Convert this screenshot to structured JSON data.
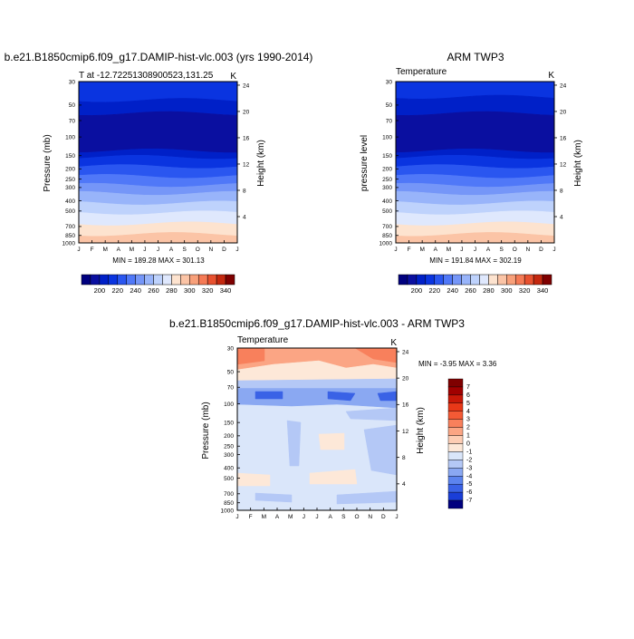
{
  "panel1": {
    "title": "b.e21.B1850cmip6.f09_g17.DAMIP-hist-vlc.003 (yrs 1990-2014)",
    "left_label": "T at -12.72251308900523,131.25",
    "unit": "K",
    "ylabel": "Pressure (mb)",
    "right_label": "Height (km)",
    "minmax": "MIN = 189.28 MAX = 301.13"
  },
  "panel2": {
    "title": "ARM TWP3",
    "left_label": "Temperature",
    "unit": "K",
    "ylabel": "pressure level",
    "right_label": "Height (km)",
    "minmax": "MIN = 191.84 MAX = 302.19"
  },
  "panel3": {
    "title": "b.e21.B1850cmip6.f09_g17.DAMIP-hist-vlc.003 - ARM TWP3",
    "left_label": "Temperature",
    "unit": "K",
    "ylabel": "Pressure (mb)",
    "right_label": "Height (km)",
    "minmax": "MIN =  -3.95 MAX =   3.36"
  },
  "chart_data": [
    {
      "type": "heatmap",
      "title": "b.e21.B1850cmip6.f09_g17.DAMIP-hist-vlc.003 (yrs 1990-2014)",
      "x_ticks": [
        "J",
        "F",
        "M",
        "A",
        "M",
        "J",
        "J",
        "A",
        "S",
        "O",
        "N",
        "D",
        "J"
      ],
      "pressure_ticks": [
        "30",
        "50",
        "70",
        "100",
        "150",
        "200",
        "250",
        "300",
        "400",
        "500",
        "700",
        "850",
        "1000"
      ],
      "height_ticks": [
        "24",
        "20",
        "16",
        "12",
        "8",
        "4"
      ],
      "bands": [
        {
          "p_top": 30,
          "p_bottom": 45,
          "value": 215
        },
        {
          "p_top": 45,
          "p_bottom": 60,
          "value": 205
        },
        {
          "p_top": 60,
          "p_bottom": 135,
          "value": 195
        },
        {
          "p_top": 135,
          "p_bottom": 155,
          "value": 205
        },
        {
          "p_top": 155,
          "p_bottom": 190,
          "value": 215
        },
        {
          "p_top": 190,
          "p_bottom": 235,
          "value": 225
        },
        {
          "p_top": 235,
          "p_bottom": 285,
          "value": 235
        },
        {
          "p_top": 285,
          "p_bottom": 340,
          "value": 245
        },
        {
          "p_top": 340,
          "p_bottom": 420,
          "value": 255
        },
        {
          "p_top": 420,
          "p_bottom": 520,
          "value": 265
        },
        {
          "p_top": 520,
          "p_bottom": 660,
          "value": 275
        },
        {
          "p_top": 660,
          "p_bottom": 830,
          "value": 285
        },
        {
          "p_top": 830,
          "p_bottom": 1000,
          "value": 295
        }
      ],
      "colorbar_labels": [
        "200",
        "220",
        "240",
        "260",
        "280",
        "300",
        "320",
        "340"
      ],
      "min": 189.28,
      "max": 301.13
    },
    {
      "type": "heatmap",
      "title": "ARM TWP3",
      "x_ticks": [
        "J",
        "F",
        "M",
        "A",
        "M",
        "J",
        "J",
        "A",
        "S",
        "O",
        "N",
        "D",
        "J"
      ],
      "pressure_ticks": [
        "30",
        "50",
        "70",
        "100",
        "150",
        "200",
        "250",
        "300",
        "400",
        "500",
        "700",
        "850",
        "1000"
      ],
      "height_ticks": [
        "24",
        "20",
        "16",
        "12",
        "8",
        "4"
      ],
      "bands": [
        {
          "p_top": 30,
          "p_bottom": 42,
          "value": 215
        },
        {
          "p_top": 42,
          "p_bottom": 60,
          "value": 205
        },
        {
          "p_top": 60,
          "p_bottom": 135,
          "value": 195
        },
        {
          "p_top": 135,
          "p_bottom": 155,
          "value": 205
        },
        {
          "p_top": 155,
          "p_bottom": 190,
          "value": 215
        },
        {
          "p_top": 190,
          "p_bottom": 235,
          "value": 225
        },
        {
          "p_top": 235,
          "p_bottom": 285,
          "value": 235
        },
        {
          "p_top": 285,
          "p_bottom": 340,
          "value": 245
        },
        {
          "p_top": 340,
          "p_bottom": 420,
          "value": 255
        },
        {
          "p_top": 420,
          "p_bottom": 520,
          "value": 265
        },
        {
          "p_top": 520,
          "p_bottom": 660,
          "value": 275
        },
        {
          "p_top": 660,
          "p_bottom": 830,
          "value": 285
        },
        {
          "p_top": 830,
          "p_bottom": 1000,
          "value": 295
        }
      ],
      "colorbar_labels": [
        "200",
        "220",
        "240",
        "260",
        "280",
        "300",
        "320",
        "340"
      ],
      "min": 191.84,
      "max": 302.19
    },
    {
      "type": "heatmap",
      "title": "b.e21.B1850cmip6.f09_g17.DAMIP-hist-vlc.003 - ARM TWP3",
      "x_ticks": [
        "J",
        "F",
        "M",
        "A",
        "M",
        "J",
        "J",
        "A",
        "S",
        "O",
        "N",
        "D",
        "J"
      ],
      "pressure_ticks": [
        "30",
        "50",
        "70",
        "100",
        "150",
        "200",
        "250",
        "300",
        "400",
        "500",
        "700",
        "850",
        "1000"
      ],
      "height_ticks": [
        "24",
        "20",
        "16",
        "12",
        "8",
        "4"
      ],
      "colorbar_labels": [
        "7",
        "6",
        "5",
        "4",
        "3",
        "2",
        "1",
        "0",
        "-1",
        "-2",
        "-3",
        "-4",
        "-5",
        "-6",
        "-7"
      ],
      "min": -3.95,
      "max": 3.36
    }
  ],
  "colors": {
    "temp_scale": [
      "#00007f",
      "#0a0fa0",
      "#0020c8",
      "#0a34e0",
      "#2a56f0",
      "#5078f8",
      "#7596f8",
      "#98b4fa",
      "#bed2fc",
      "#dfe8fd",
      "#fde3cf",
      "#fbc4a6",
      "#f8a07a",
      "#f57a55",
      "#e8512f",
      "#c4280f",
      "#7f0000"
    ],
    "diff_scale": [
      "#7f0000",
      "#a00000",
      "#c81808",
      "#e83818",
      "#f45a35",
      "#f8805c",
      "#fba584",
      "#fdcdb4",
      "#fde8d8",
      "#dae6fa",
      "#b4c8f6",
      "#8aa8f2",
      "#5c84ee",
      "#3a62e6",
      "#1a3ed8",
      "#00007f"
    ]
  }
}
